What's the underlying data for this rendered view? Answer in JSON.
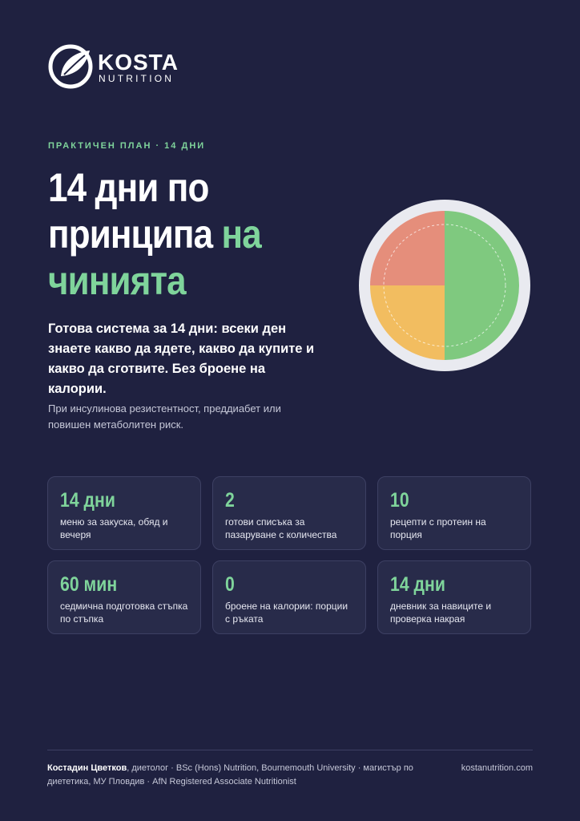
{
  "logo": {
    "name": "KOSTA",
    "sub": "NUTRITION"
  },
  "eyebrow": "ПРАКТИЧЕН ПЛАН · 14 ДНИ",
  "title": {
    "main": "14 дни по принципа",
    "accent": "на чинията"
  },
  "lead": "Готова система за 14 дни: всеки ден знаете какво да ядете, какво да купите и какво да сготвите. Без броене на калории.",
  "note": "При инсулинова резистентност, преддиабет или повишен метаболитен риск.",
  "stats": [
    {
      "value": "14 дни",
      "text": "меню за закуска, обяд и вечеря"
    },
    {
      "value": "2",
      "text": "готови списъка за пазаруване с количества"
    },
    {
      "value": "10",
      "text": "рецепти с протеин на порция"
    },
    {
      "value": "60 мин",
      "text": "седмична подготовка стъпка по стъпка"
    },
    {
      "value": "0",
      "text": "броене на калории: порции с ръката"
    },
    {
      "value": "14 дни",
      "text": "дневник за навиците и проверка накрая"
    }
  ],
  "footer": {
    "author": "Костадин Цветков",
    "credentials": ", диетолог · BSc (Hons) Nutrition, Bournemouth University · магистър по диететика, МУ Пловдив · AfN Registered Associate Nutritionist",
    "site": "kostanutrition.com"
  }
}
